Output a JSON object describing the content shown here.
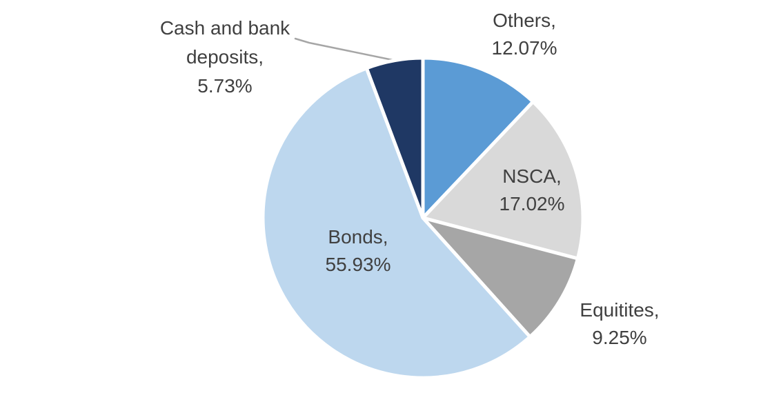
{
  "chart_data": {
    "type": "pie",
    "title": "",
    "categories": [
      "Others",
      "NSCA",
      "Equitites",
      "Bonds",
      "Cash and bank deposits"
    ],
    "values": [
      12.07,
      17.02,
      9.25,
      55.93,
      5.73
    ],
    "unit": "%",
    "colors": [
      "#5B9BD5",
      "#D9D9D9",
      "#A6A6A6",
      "#BDD7EE",
      "#1F3864"
    ],
    "slice_ids": [
      "others",
      "nsca",
      "equitites",
      "bonds",
      "cash-and-bank-deposits"
    ],
    "start_angle_deg": 0,
    "direction": "clockwise",
    "legend_position": "none",
    "label_style": "category-name-and-percentage",
    "label_color": "#404040",
    "leader_line_color": "#A6A6A6",
    "slice_labels": [
      {
        "name": "Others,",
        "value": "12.07%"
      },
      {
        "name": "NSCA,",
        "value": "17.02%"
      },
      {
        "name": "Equitites,",
        "value": "9.25%"
      },
      {
        "name": "Bonds,",
        "value": "55.93%"
      },
      {
        "name": "Cash and bank deposits,",
        "value": "5.73%"
      }
    ]
  }
}
